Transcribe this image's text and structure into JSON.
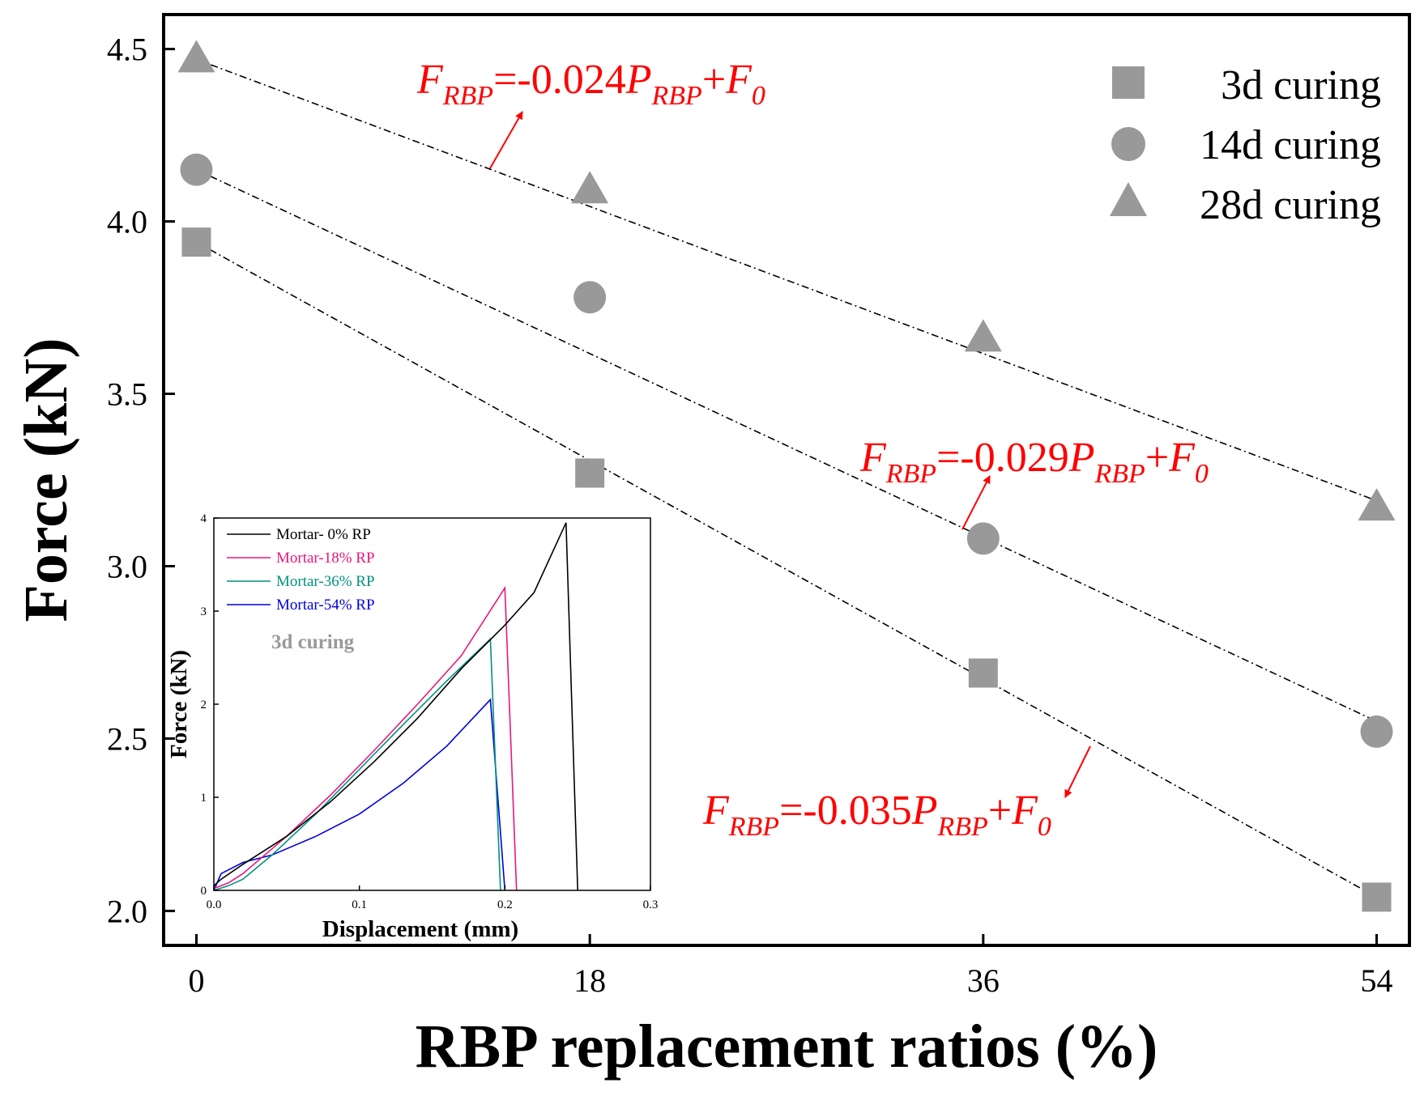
{
  "chart_data": [
    {
      "type": "scatter",
      "title": "",
      "xlabel": "RBP replacement ratios (%)",
      "ylabel": "Force (kN)",
      "xlim": [
        -1.5,
        55.5
      ],
      "ylim": [
        1.9,
        4.6
      ],
      "xticks": [
        "0",
        "18",
        "36",
        "54"
      ],
      "yticks": [
        "2.0",
        "2.5",
        "3.0",
        "3.5",
        "4.0",
        "4.5"
      ],
      "x": [
        0,
        18,
        36,
        54
      ],
      "series": [
        {
          "name": "3d curing",
          "marker": "square",
          "color": "#999999",
          "values": [
            3.94,
            3.27,
            2.69,
            2.04
          ],
          "fit": [
            3.94,
            2.04
          ]
        },
        {
          "name": "14d curing",
          "marker": "circle",
          "color": "#999999",
          "values": [
            4.15,
            3.78,
            3.08,
            2.52
          ],
          "fit": [
            4.15,
            2.55
          ]
        },
        {
          "name": "28d curing",
          "marker": "triangle",
          "color": "#999999",
          "values": [
            4.47,
            4.09,
            3.66,
            3.17
          ],
          "fit": [
            4.47,
            3.19
          ]
        }
      ],
      "annotations": [
        {
          "sym": "F",
          "sub1": "RBP",
          "mid": "=-0.024",
          "sym2": "P",
          "sub2": "RBP",
          "plus": "+",
          "sym3": "F",
          "sub3": "0",
          "color": "#ff0000"
        },
        {
          "sym": "F",
          "sub1": "RBP",
          "mid": "=-0.029",
          "sym2": "P",
          "sub2": "RBP",
          "plus": "+",
          "sym3": "F",
          "sub3": "0",
          "color": "#ff0000"
        },
        {
          "sym": "F",
          "sub1": "RBP",
          "mid": "=-0.035",
          "sym2": "P",
          "sub2": "RBP",
          "plus": "+",
          "sym3": "F",
          "sub3": "0",
          "color": "#ff0000"
        }
      ],
      "legend": "top-right",
      "grid": false
    },
    {
      "type": "line",
      "title": "3d curing",
      "xlabel": "Displacement (mm)",
      "ylabel": "Force (kN)",
      "xlim": [
        0,
        0.3
      ],
      "ylim": [
        0,
        4
      ],
      "xticks": [
        "0.0",
        "0.1",
        "0.2",
        "0.3"
      ],
      "yticks": [
        "0",
        "1",
        "2",
        "3",
        "4"
      ],
      "series": [
        {
          "name": "Mortar-  0% RP",
          "color": "#000000",
          "x": [
            0,
            0.005,
            0.02,
            0.05,
            0.08,
            0.11,
            0.14,
            0.17,
            0.2,
            0.22,
            0.242,
            0.25
          ],
          "y": [
            0.05,
            0.12,
            0.28,
            0.58,
            0.95,
            1.38,
            1.85,
            2.38,
            2.85,
            3.2,
            3.95,
            0
          ]
        },
        {
          "name": "Mortar-18% RP",
          "color": "#e8177d",
          "x": [
            0,
            0.01,
            0.02,
            0.05,
            0.08,
            0.11,
            0.14,
            0.17,
            0.2,
            0.208
          ],
          "y": [
            0.02,
            0.08,
            0.18,
            0.58,
            1.02,
            1.5,
            2.0,
            2.52,
            3.25,
            0
          ]
        },
        {
          "name": "Mortar-36% RP",
          "color": "#009080",
          "x": [
            0,
            0.01,
            0.02,
            0.04,
            0.07,
            0.1,
            0.13,
            0.16,
            0.19,
            0.197
          ],
          "y": [
            0,
            0.05,
            0.12,
            0.38,
            0.82,
            1.3,
            1.78,
            2.25,
            2.7,
            0
          ]
        },
        {
          "name": "Mortar-54% RP",
          "color": "#0000dd",
          "x": [
            0,
            0.005,
            0.02,
            0.04,
            0.07,
            0.1,
            0.13,
            0.16,
            0.19,
            0.2
          ],
          "y": [
            0,
            0.18,
            0.3,
            0.38,
            0.58,
            0.82,
            1.15,
            1.55,
            2.05,
            0
          ]
        }
      ],
      "legend": "top-left"
    }
  ]
}
